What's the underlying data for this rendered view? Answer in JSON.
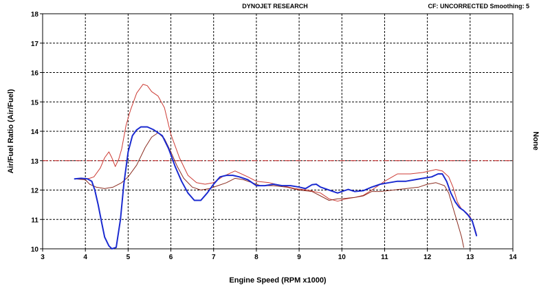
{
  "chart_data": {
    "type": "line",
    "title": "DYNOJET RESEARCH",
    "subtitle": "CF: UNCORRECTED  Smoothing: 5",
    "xlabel": "Engine Speed (RPM x1000)",
    "ylabel": "Air/Fuel Ratio (Air/Fuel)",
    "right_label": "None",
    "xlim": [
      3,
      14
    ],
    "ylim": [
      10,
      18
    ],
    "x_ticks": [
      3,
      4,
      5,
      6,
      7,
      8,
      9,
      10,
      11,
      12,
      13,
      14
    ],
    "y_ticks": [
      10,
      11,
      12,
      13,
      14,
      15,
      16,
      17,
      18
    ],
    "grid": true,
    "reference_line": {
      "y": 13,
      "color": "#cc2222",
      "style": "dash-dot"
    },
    "series": [
      {
        "color": "#cc3a33",
        "width": 1,
        "points": [
          [
            3.75,
            12.38
          ],
          [
            4.0,
            12.38
          ],
          [
            4.1,
            12.4
          ],
          [
            4.2,
            12.45
          ],
          [
            4.35,
            12.75
          ],
          [
            4.45,
            13.1
          ],
          [
            4.55,
            13.3
          ],
          [
            4.62,
            13.1
          ],
          [
            4.7,
            12.8
          ],
          [
            4.78,
            13.05
          ],
          [
            4.85,
            13.4
          ],
          [
            4.95,
            14.2
          ],
          [
            5.05,
            14.7
          ],
          [
            5.2,
            15.3
          ],
          [
            5.35,
            15.6
          ],
          [
            5.45,
            15.55
          ],
          [
            5.55,
            15.35
          ],
          [
            5.7,
            15.2
          ],
          [
            5.85,
            14.8
          ],
          [
            6.0,
            13.9
          ],
          [
            6.2,
            13.1
          ],
          [
            6.4,
            12.5
          ],
          [
            6.6,
            12.25
          ],
          [
            6.8,
            12.2
          ],
          [
            7.0,
            12.25
          ],
          [
            7.2,
            12.45
          ],
          [
            7.5,
            12.65
          ],
          [
            7.8,
            12.45
          ],
          [
            8.0,
            12.3
          ],
          [
            8.3,
            12.25
          ],
          [
            8.6,
            12.15
          ],
          [
            8.9,
            12.05
          ],
          [
            9.2,
            12.0
          ],
          [
            9.5,
            11.9
          ],
          [
            9.7,
            11.7
          ],
          [
            9.9,
            11.62
          ],
          [
            10.1,
            11.7
          ],
          [
            10.3,
            11.75
          ],
          [
            10.5,
            11.82
          ],
          [
            10.7,
            12.0
          ],
          [
            11.0,
            12.3
          ],
          [
            11.3,
            12.55
          ],
          [
            11.6,
            12.55
          ],
          [
            11.9,
            12.6
          ],
          [
            12.2,
            12.7
          ],
          [
            12.35,
            12.65
          ],
          [
            12.5,
            12.45
          ],
          [
            12.6,
            12.1
          ],
          [
            12.7,
            11.6
          ],
          [
            12.8,
            11.35
          ],
          [
            12.9,
            11.25
          ],
          [
            13.0,
            11.1
          ],
          [
            13.1,
            10.75
          ],
          [
            13.15,
            10.5
          ]
        ]
      },
      {
        "color": "#8a2a1e",
        "width": 1,
        "points": [
          [
            3.75,
            12.38
          ],
          [
            4.0,
            12.35
          ],
          [
            4.1,
            12.2
          ],
          [
            4.25,
            12.1
          ],
          [
            4.45,
            12.05
          ],
          [
            4.65,
            12.1
          ],
          [
            4.85,
            12.25
          ],
          [
            5.0,
            12.45
          ],
          [
            5.2,
            12.85
          ],
          [
            5.4,
            13.45
          ],
          [
            5.55,
            13.8
          ],
          [
            5.7,
            13.95
          ],
          [
            5.85,
            13.75
          ],
          [
            6.0,
            13.3
          ],
          [
            6.15,
            12.8
          ],
          [
            6.3,
            12.4
          ],
          [
            6.5,
            12.1
          ],
          [
            6.7,
            12.0
          ],
          [
            6.9,
            12.05
          ],
          [
            7.1,
            12.15
          ],
          [
            7.3,
            12.25
          ],
          [
            7.5,
            12.4
          ],
          [
            7.7,
            12.35
          ],
          [
            7.9,
            12.25
          ],
          [
            8.1,
            12.15
          ],
          [
            8.4,
            12.15
          ],
          [
            8.7,
            12.1
          ],
          [
            9.0,
            12.0
          ],
          [
            9.3,
            11.95
          ],
          [
            9.5,
            11.8
          ],
          [
            9.7,
            11.65
          ],
          [
            9.9,
            11.7
          ],
          [
            10.1,
            11.72
          ],
          [
            10.3,
            11.75
          ],
          [
            10.5,
            11.8
          ],
          [
            10.7,
            11.95
          ],
          [
            10.9,
            11.95
          ],
          [
            11.2,
            12.0
          ],
          [
            11.5,
            12.05
          ],
          [
            11.8,
            12.1
          ],
          [
            12.0,
            12.2
          ],
          [
            12.2,
            12.25
          ],
          [
            12.4,
            12.15
          ],
          [
            12.5,
            11.9
          ],
          [
            12.6,
            11.4
          ],
          [
            12.7,
            10.9
          ],
          [
            12.8,
            10.4
          ],
          [
            12.85,
            10.05
          ]
        ]
      },
      {
        "color": "#1a2ad0",
        "width": 2,
        "points": [
          [
            3.75,
            12.38
          ],
          [
            3.9,
            12.4
          ],
          [
            4.05,
            12.38
          ],
          [
            4.15,
            12.3
          ],
          [
            4.22,
            12.0
          ],
          [
            4.3,
            11.5
          ],
          [
            4.38,
            10.9
          ],
          [
            4.45,
            10.4
          ],
          [
            4.55,
            10.1
          ],
          [
            4.62,
            10.0
          ],
          [
            4.72,
            10.05
          ],
          [
            4.82,
            11.0
          ],
          [
            4.9,
            12.2
          ],
          [
            5.0,
            13.3
          ],
          [
            5.1,
            13.85
          ],
          [
            5.2,
            14.05
          ],
          [
            5.3,
            14.15
          ],
          [
            5.45,
            14.15
          ],
          [
            5.6,
            14.05
          ],
          [
            5.8,
            13.85
          ],
          [
            5.95,
            13.4
          ],
          [
            6.1,
            12.8
          ],
          [
            6.25,
            12.3
          ],
          [
            6.4,
            11.9
          ],
          [
            6.55,
            11.65
          ],
          [
            6.7,
            11.65
          ],
          [
            6.85,
            11.9
          ],
          [
            7.0,
            12.2
          ],
          [
            7.15,
            12.45
          ],
          [
            7.3,
            12.5
          ],
          [
            7.45,
            12.5
          ],
          [
            7.6,
            12.45
          ],
          [
            7.8,
            12.35
          ],
          [
            8.0,
            12.15
          ],
          [
            8.2,
            12.15
          ],
          [
            8.4,
            12.2
          ],
          [
            8.6,
            12.15
          ],
          [
            8.8,
            12.15
          ],
          [
            9.0,
            12.1
          ],
          [
            9.15,
            12.05
          ],
          [
            9.3,
            12.18
          ],
          [
            9.4,
            12.2
          ],
          [
            9.5,
            12.1
          ],
          [
            9.7,
            12.0
          ],
          [
            9.9,
            11.9
          ],
          [
            10.0,
            11.95
          ],
          [
            10.15,
            12.02
          ],
          [
            10.3,
            11.95
          ],
          [
            10.5,
            11.98
          ],
          [
            10.7,
            12.1
          ],
          [
            10.9,
            12.2
          ],
          [
            11.1,
            12.25
          ],
          [
            11.3,
            12.3
          ],
          [
            11.5,
            12.3
          ],
          [
            11.7,
            12.35
          ],
          [
            11.9,
            12.4
          ],
          [
            12.1,
            12.45
          ],
          [
            12.25,
            12.55
          ],
          [
            12.35,
            12.55
          ],
          [
            12.45,
            12.3
          ],
          [
            12.55,
            11.9
          ],
          [
            12.65,
            11.6
          ],
          [
            12.75,
            11.4
          ],
          [
            12.85,
            11.3
          ],
          [
            12.95,
            11.15
          ],
          [
            13.05,
            10.95
          ],
          [
            13.15,
            10.45
          ]
        ]
      }
    ]
  }
}
